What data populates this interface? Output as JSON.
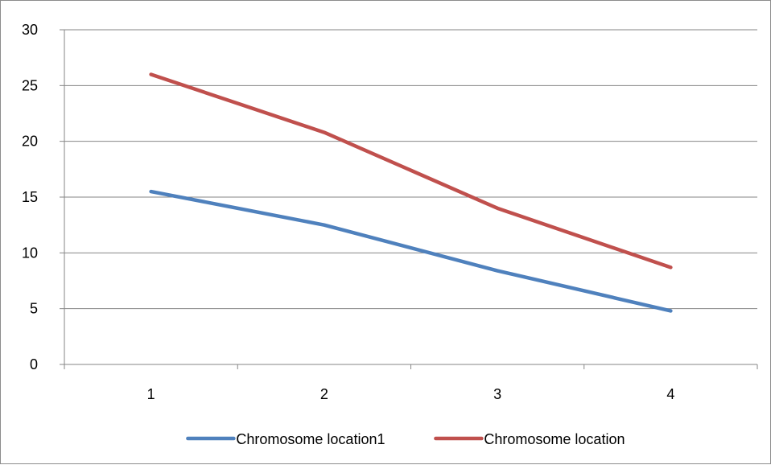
{
  "chart_data": {
    "type": "line",
    "title": "",
    "xlabel": "",
    "ylabel": "",
    "categories": [
      "1",
      "2",
      "3",
      "4"
    ],
    "ylim": [
      0,
      30
    ],
    "yticks": [
      0,
      5,
      10,
      15,
      20,
      25,
      30
    ],
    "grid": true,
    "legend_position": "bottom",
    "series": [
      {
        "name": "Chromosome location1",
        "color": "#4f81bd",
        "values": [
          15.5,
          12.5,
          8.4,
          4.8
        ]
      },
      {
        "name": "Chromosome location",
        "color": "#c0504d",
        "values": [
          26.0,
          20.8,
          14.0,
          8.7
        ]
      }
    ]
  }
}
